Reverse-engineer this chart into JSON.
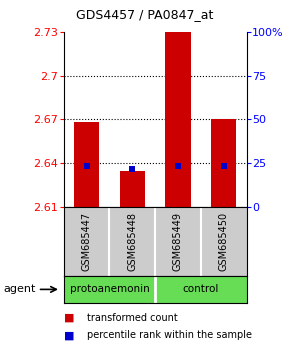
{
  "title": "GDS4457 / PA0847_at",
  "samples": [
    "GSM685447",
    "GSM685448",
    "GSM685449",
    "GSM685450"
  ],
  "red_values": [
    2.668,
    2.635,
    2.73,
    2.67
  ],
  "blue_values": [
    2.638,
    2.636,
    2.638,
    2.638
  ],
  "y_min": 2.61,
  "y_max": 2.73,
  "y_ticks": [
    2.61,
    2.64,
    2.67,
    2.7,
    2.73
  ],
  "y_ticks_labels": [
    "2.61",
    "2.64",
    "2.67",
    "2.7",
    "2.73"
  ],
  "right_y_ticks": [
    0,
    25,
    50,
    75,
    100
  ],
  "right_y_labels": [
    "0",
    "25",
    "50",
    "75",
    "100%"
  ],
  "groups": [
    {
      "label": "protoanemonin",
      "indices": [
        0,
        1
      ]
    },
    {
      "label": "control",
      "indices": [
        2,
        3
      ]
    }
  ],
  "bar_color": "#CC0000",
  "blue_color": "#0000CC",
  "bar_width": 0.55,
  "agent_label": "agent",
  "legend_red": "transformed count",
  "legend_blue": "percentile rank within the sample",
  "background_color": "#ffffff",
  "label_area_color": "#cccccc",
  "group_area_color": "#66dd55",
  "grid_color": [
    2.64,
    2.67,
    2.7
  ]
}
